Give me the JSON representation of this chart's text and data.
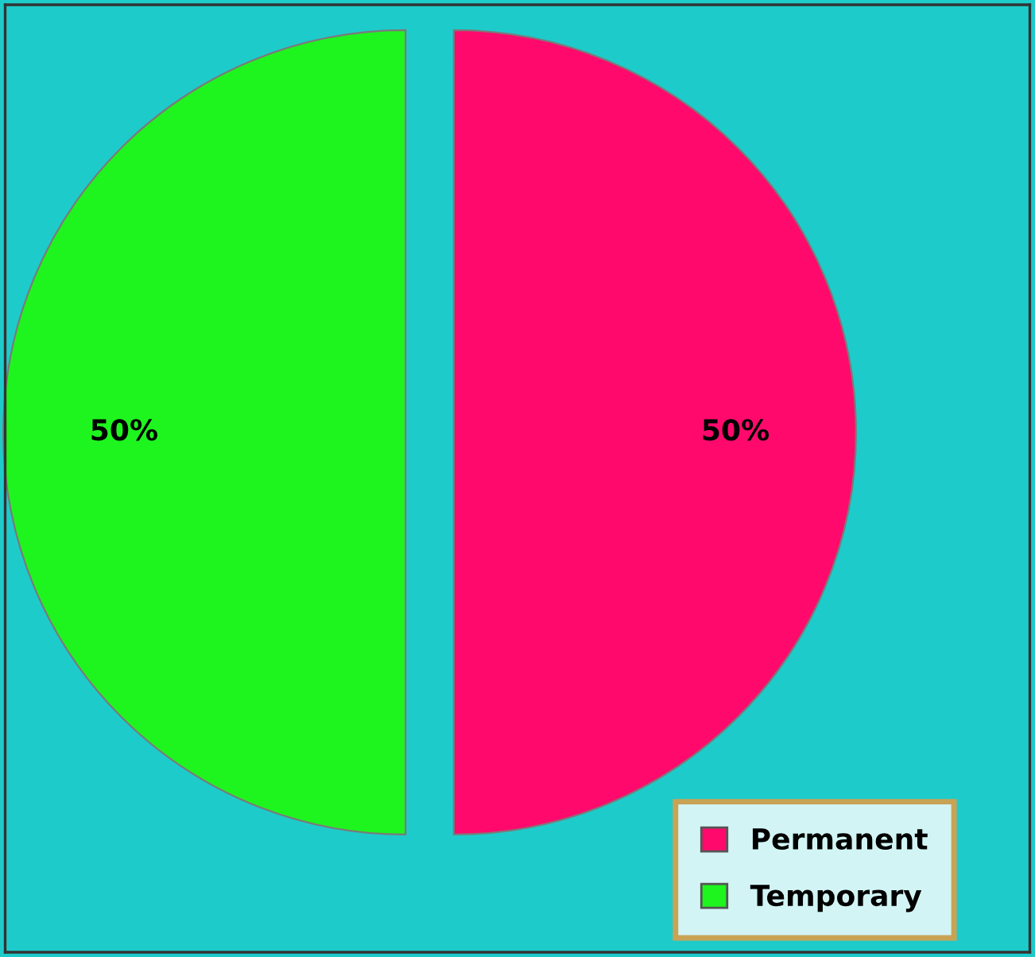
{
  "chart_data": {
    "type": "pie",
    "categories": [
      "Permanent",
      "Temporary"
    ],
    "values": [
      50,
      50
    ],
    "colors": [
      "#ff0a6c",
      "#1ef51e"
    ],
    "value_labels": [
      "50%",
      "50%"
    ],
    "legend": "bottom right"
  }
}
